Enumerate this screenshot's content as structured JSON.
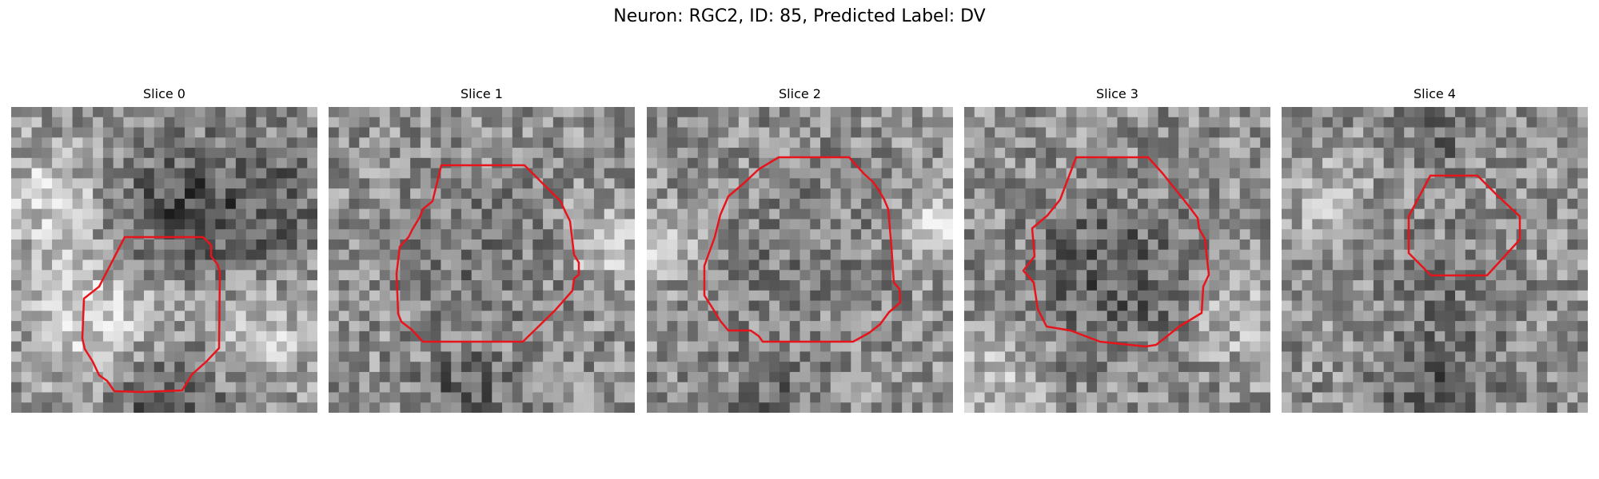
{
  "figure": {
    "title": "Neuron: RGC2, ID: 85, Predicted Label: DV"
  },
  "outline_color": "#e8141c",
  "panels": [
    {
      "label": "Slice 0",
      "seed": 11,
      "blobs": [
        [
          0.55,
          0.35,
          0.22,
          -70
        ],
        [
          0.3,
          0.7,
          0.22,
          70
        ],
        [
          0.12,
          0.3,
          0.18,
          60
        ],
        [
          0.82,
          0.75,
          0.16,
          60
        ],
        [
          0.5,
          0.95,
          0.2,
          -60
        ],
        [
          0.85,
          0.3,
          0.2,
          -40
        ]
      ]
    },
    {
      "label": "Slice 1",
      "seed": 23,
      "blobs": [
        [
          0.5,
          0.5,
          0.25,
          -25
        ],
        [
          0.9,
          0.45,
          0.12,
          60
        ],
        [
          0.45,
          0.95,
          0.15,
          -50
        ]
      ]
    },
    {
      "label": "Slice 2",
      "seed": 37,
      "blobs": [
        [
          0.5,
          0.5,
          0.28,
          -20
        ],
        [
          0.95,
          0.4,
          0.12,
          70
        ],
        [
          0.05,
          0.45,
          0.1,
          60
        ],
        [
          0.42,
          0.97,
          0.15,
          -40
        ]
      ]
    },
    {
      "label": "Slice 3",
      "seed": 41,
      "blobs": [
        [
          0.48,
          0.55,
          0.26,
          -55
        ],
        [
          0.9,
          0.7,
          0.15,
          40
        ],
        [
          0.1,
          0.9,
          0.15,
          40
        ]
      ]
    },
    {
      "label": "Slice 4",
      "seed": 53,
      "blobs": [
        [
          0.5,
          0.95,
          0.18,
          -60
        ],
        [
          0.15,
          0.3,
          0.12,
          55
        ],
        [
          0.5,
          0.1,
          0.12,
          -40
        ],
        [
          0.55,
          0.6,
          0.2,
          -25
        ]
      ]
    }
  ]
}
